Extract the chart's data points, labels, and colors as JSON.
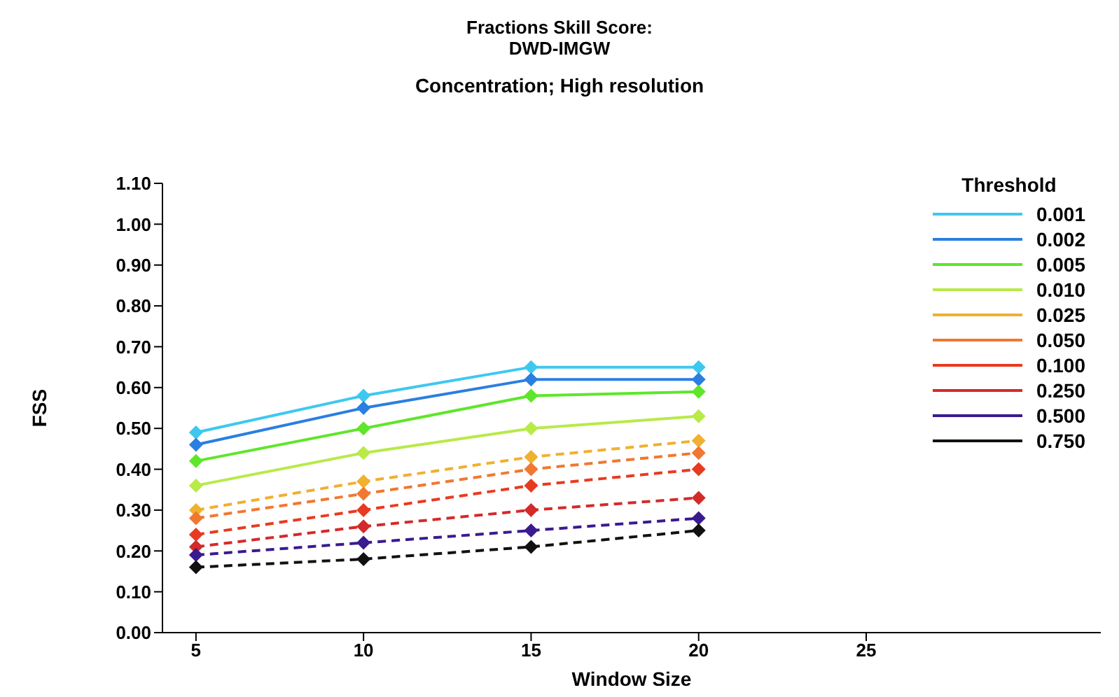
{
  "chart_data": {
    "type": "line",
    "title": "Fractions Skill Score:\nDWD-IMGW",
    "subtitle": "Concentration; High resolution",
    "xlabel": "Window Size",
    "ylabel": "FSS",
    "legend_title": "Threshold",
    "x": [
      5,
      10,
      15,
      20
    ],
    "xlim": [
      4,
      32
    ],
    "xticks": [
      5,
      10,
      15,
      20,
      25
    ],
    "ylim": [
      0,
      1.1
    ],
    "yticks": [
      {
        "value": 0,
        "label": "0.00"
      },
      {
        "value": 0.1,
        "label": "0.10"
      },
      {
        "value": 0.2,
        "label": "0.20"
      },
      {
        "value": 0.3,
        "label": "0.30"
      },
      {
        "value": 0.4,
        "label": "0.40"
      },
      {
        "value": 0.5,
        "label": "0.50"
      },
      {
        "value": 0.6,
        "label": "0.60"
      },
      {
        "value": 0.7,
        "label": "0.70"
      },
      {
        "value": 0.8,
        "label": "0.80"
      },
      {
        "value": 0.9,
        "label": "0.90"
      },
      {
        "value": 1.0,
        "label": "1.00"
      },
      {
        "value": 1.1,
        "label": "1.10"
      }
    ],
    "grid": false,
    "legend": "top right",
    "marker": "diamond",
    "series": [
      {
        "name": "0.001",
        "color": "#3ec8f0",
        "line_style": "solid",
        "values": [
          0.49,
          0.58,
          0.65,
          0.65
        ]
      },
      {
        "name": "0.002",
        "color": "#2a7fe0",
        "line_style": "solid",
        "values": [
          0.46,
          0.55,
          0.62,
          0.62
        ]
      },
      {
        "name": "0.005",
        "color": "#5ee62a",
        "line_style": "solid",
        "values": [
          0.42,
          0.5,
          0.58,
          0.59
        ]
      },
      {
        "name": "0.010",
        "color": "#b8ea48",
        "line_style": "solid",
        "values": [
          0.36,
          0.44,
          0.5,
          0.53
        ]
      },
      {
        "name": "0.025",
        "color": "#f0b030",
        "line_style": "dashed",
        "values": [
          0.3,
          0.37,
          0.43,
          0.47
        ]
      },
      {
        "name": "0.050",
        "color": "#f07830",
        "line_style": "dashed",
        "values": [
          0.28,
          0.34,
          0.4,
          0.44
        ]
      },
      {
        "name": "0.100",
        "color": "#e83a20",
        "line_style": "dashed",
        "values": [
          0.24,
          0.3,
          0.36,
          0.4
        ]
      },
      {
        "name": "0.250",
        "color": "#d42a2a",
        "line_style": "dashed",
        "values": [
          0.21,
          0.26,
          0.3,
          0.33
        ]
      },
      {
        "name": "0.500",
        "color": "#3a1a90",
        "line_style": "dashed",
        "values": [
          0.19,
          0.22,
          0.25,
          0.28
        ]
      },
      {
        "name": "0.750",
        "color": "#111111",
        "line_style": "dashed",
        "values": [
          0.16,
          0.18,
          0.21,
          0.25
        ]
      }
    ]
  }
}
